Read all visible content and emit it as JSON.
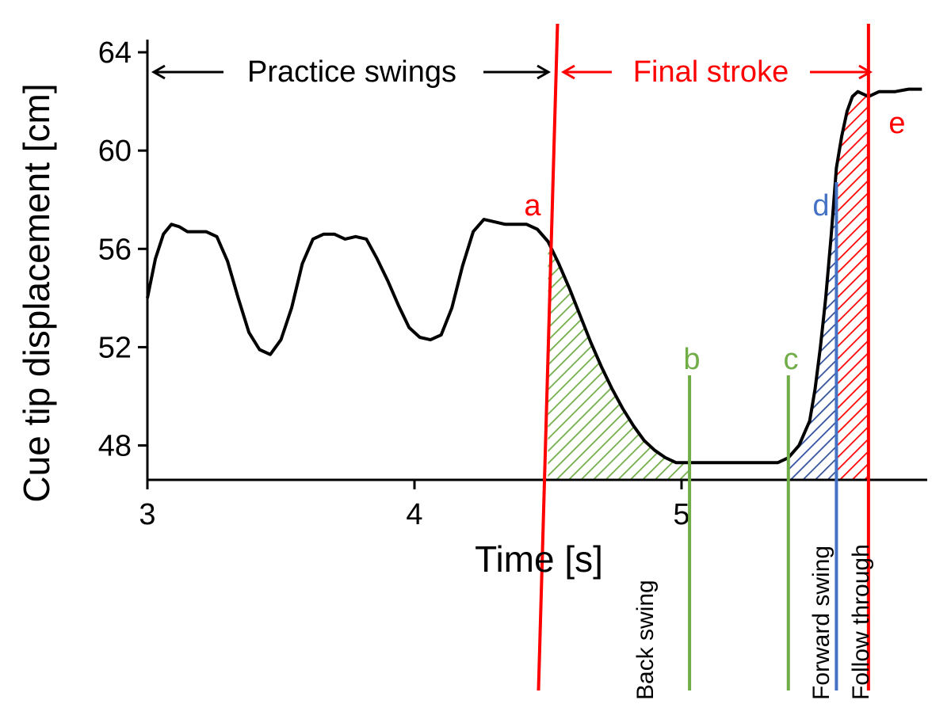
{
  "chart_data": {
    "type": "line",
    "title": "",
    "xlabel": "Time [s]",
    "ylabel": "Cue tip displacement [cm]",
    "xlim": [
      3,
      5.92
    ],
    "ylim": [
      46.6,
      65
    ],
    "x_ticks": [
      3,
      4,
      5
    ],
    "x_tick_labels": [
      "3",
      "4",
      "5"
    ],
    "y_ticks": [
      48,
      52,
      56,
      60,
      64
    ],
    "y_tick_labels": [
      "48",
      "52",
      "56",
      "60",
      "64"
    ],
    "grid": false,
    "series": [
      {
        "color": "#000000",
        "x": [
          3.0,
          3.03,
          3.06,
          3.09,
          3.12,
          3.15,
          3.18,
          3.22,
          3.26,
          3.3,
          3.34,
          3.38,
          3.42,
          3.46,
          3.5,
          3.54,
          3.58,
          3.62,
          3.66,
          3.7,
          3.74,
          3.78,
          3.82,
          3.86,
          3.9,
          3.94,
          3.98,
          4.02,
          4.06,
          4.1,
          4.14,
          4.18,
          4.22,
          4.26,
          4.3,
          4.34,
          4.38,
          4.42,
          4.46,
          4.5,
          4.54,
          4.58,
          4.62,
          4.66,
          4.7,
          4.74,
          4.78,
          4.82,
          4.86,
          4.9,
          4.94,
          4.98,
          5.02,
          5.06,
          5.1,
          5.2,
          5.3,
          5.36,
          5.4,
          5.44,
          5.48,
          5.5,
          5.52,
          5.54,
          5.56,
          5.58,
          5.6,
          5.62,
          5.64,
          5.66,
          5.68,
          5.7,
          5.72,
          5.74,
          5.76,
          5.8,
          5.85,
          5.9
        ],
        "y": [
          54.0,
          55.6,
          56.6,
          57.0,
          56.9,
          56.7,
          56.7,
          56.7,
          56.5,
          55.5,
          54.0,
          52.6,
          51.9,
          51.7,
          52.3,
          53.6,
          55.4,
          56.4,
          56.6,
          56.6,
          56.4,
          56.5,
          56.4,
          55.6,
          54.7,
          53.7,
          52.8,
          52.4,
          52.3,
          52.5,
          53.6,
          55.3,
          56.7,
          57.2,
          57.1,
          57.0,
          57.0,
          57.0,
          56.8,
          56.3,
          55.4,
          54.4,
          53.3,
          52.2,
          51.2,
          50.3,
          49.5,
          48.8,
          48.2,
          47.8,
          47.5,
          47.3,
          47.3,
          47.3,
          47.3,
          47.3,
          47.3,
          47.3,
          47.5,
          48.0,
          49.0,
          50.3,
          52.0,
          54.0,
          56.5,
          59.3,
          60.6,
          61.6,
          62.2,
          62.4,
          62.3,
          62.2,
          62.3,
          62.4,
          62.4,
          62.4,
          62.5,
          62.5
        ]
      }
    ],
    "events": [
      {
        "label": "a",
        "x": 4.5,
        "color": "#ff0000"
      },
      {
        "label": "b",
        "x": 5.03,
        "color": "#70ad47"
      },
      {
        "label": "c",
        "x": 5.4,
        "color": "#70ad47"
      },
      {
        "label": "d",
        "x": 5.58,
        "color": "#4472c4"
      },
      {
        "label": "e",
        "x": 5.7,
        "color": "#ff0000"
      }
    ],
    "phases": [
      {
        "label": "Back swing",
        "from": 4.5,
        "to": 5.03,
        "color": "#70ad47"
      },
      {
        "label": "Forward swing",
        "from": 5.4,
        "to": 5.58,
        "color": "#4472c4"
      },
      {
        "label": "Follow through",
        "from": 5.58,
        "to": 5.7,
        "color": "#ff0000"
      }
    ],
    "annotations": {
      "practice": "Practice swings",
      "final": "Final stroke"
    }
  }
}
